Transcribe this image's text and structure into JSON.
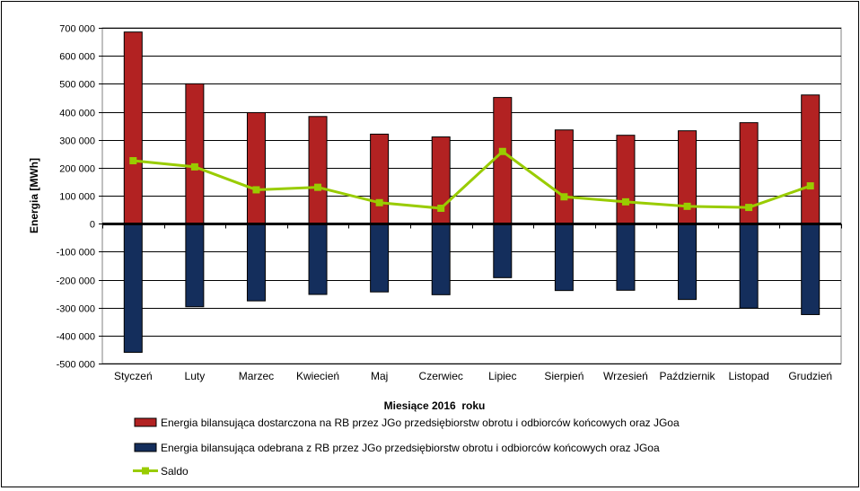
{
  "chart_data": {
    "type": "bar",
    "title": "",
    "xlabel": "Miesiące 2016  roku",
    "ylabel": "Energia [MWh]",
    "ylim": [
      -500000,
      700000
    ],
    "yticks": [
      -500000,
      -400000,
      -300000,
      -200000,
      -100000,
      0,
      100000,
      200000,
      300000,
      400000,
      500000,
      600000,
      700000
    ],
    "ytick_labels": [
      "-500 000",
      "-400 000",
      "-300 000",
      "-200 000",
      "-100 000",
      "0",
      "100 000",
      "200 000",
      "300 000",
      "400 000",
      "500 000",
      "600 000",
      "700 000"
    ],
    "grid": true,
    "legend_position": "bottom",
    "categories": [
      "Styczeń",
      "Luty",
      "Marzec",
      "Kwiecień",
      "Maj",
      "Czerwiec",
      "Lipiec",
      "Sierpień",
      "Wrzesień",
      "Październik",
      "Listopad",
      "Grudzień"
    ],
    "series": [
      {
        "name": "Energia bilansująca dostarczona na RB przez JGo przedsiębiorstw obrotu i odbiorców końcowych oraz JGoa",
        "type": "bar",
        "color": "#b22222",
        "values": [
          685000,
          500000,
          397000,
          383000,
          320000,
          310000,
          451000,
          335000,
          316000,
          332000,
          361000,
          460000
        ]
      },
      {
        "name": "Energia bilansująca odebrana z RB przez JGo przedsiębiorstw obrotu i odbiorców końcowych oraz JGoa",
        "type": "bar",
        "color": "#142e5c",
        "values": [
          -460000,
          -297000,
          -276000,
          -253000,
          -244000,
          -254000,
          -193000,
          -239000,
          -238000,
          -271000,
          -302000,
          -325000
        ]
      },
      {
        "name": "Saldo",
        "type": "line",
        "color": "#99cc00",
        "values": [
          225000,
          203000,
          121000,
          130000,
          75000,
          55000,
          258000,
          96000,
          78000,
          62000,
          58000,
          135000
        ]
      }
    ]
  }
}
